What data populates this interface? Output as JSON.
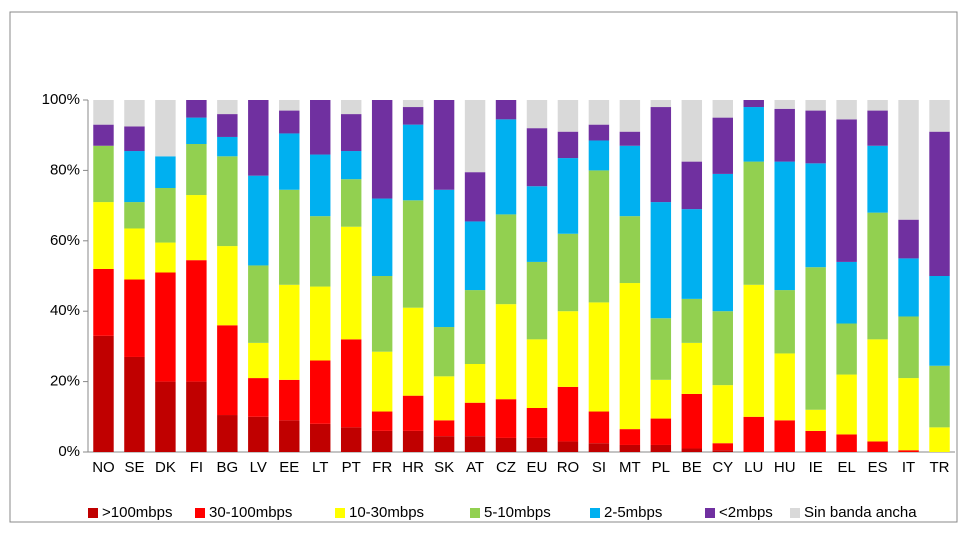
{
  "chart_data": {
    "type": "stacked_bar",
    "categories": [
      "NO",
      "SE",
      "DK",
      "FI",
      "BG",
      "LV",
      "EE",
      "LT",
      "PT",
      "FR",
      "HR",
      "SK",
      "AT",
      "CZ",
      "EU",
      "RO",
      "SI",
      "MT",
      "PL",
      "BE",
      "CY",
      "LU",
      "HU",
      "IE",
      "EL",
      "ES",
      "IT",
      "TR"
    ],
    "series": [
      {
        "name": ">100mbps",
        "color": "#c00000",
        "values": [
          33,
          27,
          20,
          20,
          10.5,
          10,
          9,
          8,
          7,
          6,
          6,
          4.5,
          4.5,
          4,
          4,
          3,
          2.5,
          2,
          2,
          1,
          0.5,
          0,
          0,
          0,
          0,
          0,
          0,
          0
        ]
      },
      {
        "name": "30-100mbps",
        "color": "#ff0000",
        "values": [
          19,
          22,
          31,
          34.5,
          25.5,
          11,
          11.5,
          18,
          25,
          5.5,
          10,
          4.5,
          9.5,
          11,
          8.5,
          15.5,
          9,
          4.5,
          7.5,
          15.5,
          2,
          10,
          9,
          6,
          5,
          3,
          0.5,
          0
        ]
      },
      {
        "name": "10-30mbps",
        "color": "#ffff00",
        "values": [
          19,
          14.5,
          8.5,
          18.5,
          22.5,
          10,
          27,
          21,
          32,
          17,
          25,
          12.5,
          11,
          27,
          19.5,
          21.5,
          31,
          41.5,
          11,
          14.5,
          16.5,
          37.5,
          19,
          6,
          17,
          29,
          20.5,
          7
        ]
      },
      {
        "name": "5-10mbps",
        "color": "#92d050",
        "values": [
          16,
          7.5,
          15.5,
          14.5,
          25.5,
          22,
          27,
          20,
          13.5,
          21.5,
          30.5,
          14,
          21,
          25.5,
          22,
          22,
          37.5,
          19,
          17.5,
          12.5,
          21,
          35,
          18,
          40.5,
          14.5,
          36,
          17.5,
          17.5
        ]
      },
      {
        "name": "2-5mbps",
        "color": "#00b0f0",
        "values": [
          0,
          14.5,
          9,
          7.5,
          5.5,
          25.5,
          16,
          17.5,
          8,
          22,
          21.5,
          39,
          19.5,
          27,
          21.5,
          21.5,
          8.5,
          20,
          33,
          25.5,
          39,
          15.5,
          36.5,
          29.5,
          17.5,
          19,
          16.5,
          25.5
        ]
      },
      {
        "name": "<2mbps",
        "color": "#7030a0",
        "values": [
          6,
          7,
          0,
          5,
          6.5,
          21.5,
          6.5,
          15.5,
          10.5,
          28,
          5,
          25.5,
          14,
          5.5,
          16.5,
          7.5,
          4.5,
          4,
          27,
          13.5,
          16,
          2,
          15,
          15,
          40.5,
          10,
          11,
          41
        ]
      },
      {
        "name": "Sin banda ancha",
        "color": "#d9d9d9",
        "values": [
          7,
          7.5,
          16,
          0,
          4,
          0,
          3,
          0,
          4,
          0,
          2,
          0,
          20.5,
          0,
          8,
          9,
          7,
          9,
          2,
          17.5,
          5,
          0,
          2.5,
          3,
          5.5,
          3,
          34,
          9
        ]
      }
    ],
    "ylim": [
      0,
      100
    ],
    "yticks": [
      {
        "value": 0,
        "label": "0%"
      },
      {
        "value": 20,
        "label": "20%"
      },
      {
        "value": 40,
        "label": "40%"
      },
      {
        "value": 60,
        "label": "60%"
      },
      {
        "value": 80,
        "label": "80%"
      },
      {
        "value": 100,
        "label": "100%"
      }
    ],
    "legend": "bottom"
  }
}
